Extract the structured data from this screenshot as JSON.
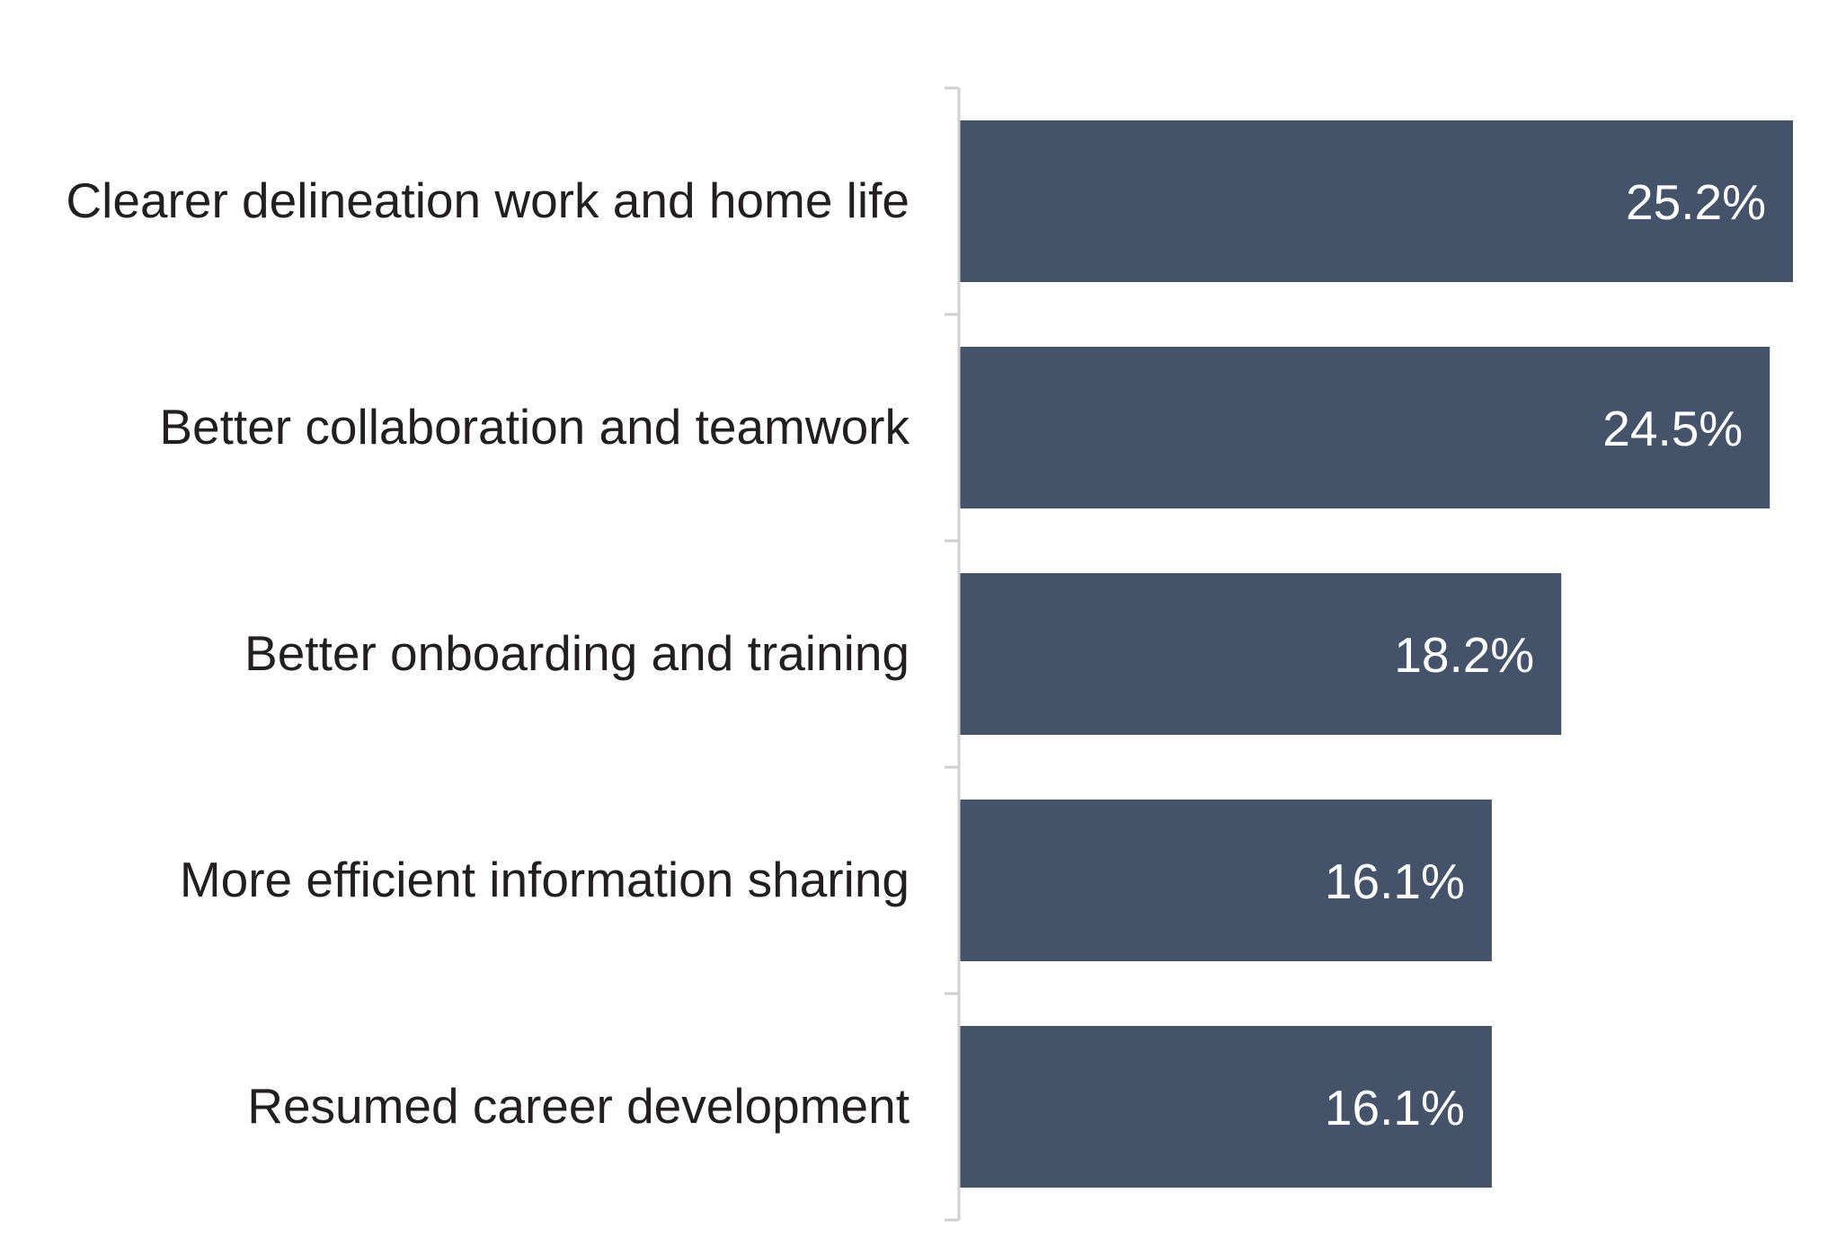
{
  "chart_data": {
    "type": "bar",
    "orientation": "horizontal",
    "title": "",
    "xlabel": "",
    "ylabel": "",
    "categories": [
      "Clearer delineation work and home life",
      "Better collaboration and teamwork",
      "Better onboarding and training",
      "More efficient information sharing",
      "Resumed career development"
    ],
    "values": [
      25.2,
      24.5,
      18.2,
      16.1,
      16.1
    ],
    "value_labels": [
      "25.2%",
      "24.5%",
      "18.2%",
      "16.1%",
      "16.1%"
    ],
    "unit": "%",
    "xlim": [
      0,
      25.2
    ],
    "grid": false,
    "legend": "none",
    "bar_color": "#45536a",
    "label_color": "#231f20",
    "value_label_color": "#ffffff",
    "axis_color": "#d0d0d0"
  }
}
